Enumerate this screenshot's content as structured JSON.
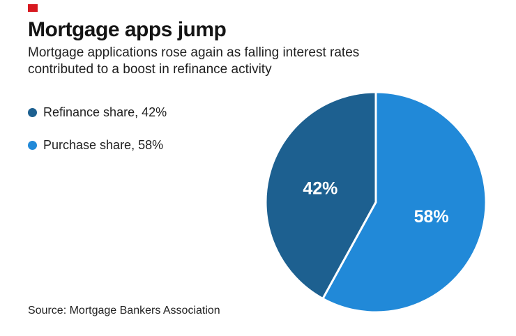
{
  "brand": {
    "mark_color": "#d71920"
  },
  "header": {
    "title": "Mortgage apps jump",
    "subtitle_line1": "Mortgage applications rose again as falling interest rates",
    "subtitle_line2": "contributed to a boost in refinance activity"
  },
  "legend": {
    "items": [
      {
        "label": "Refinance share, 42%",
        "color": "#1d6090"
      },
      {
        "label": "Purchase share, 58%",
        "color": "#2189d8"
      }
    ]
  },
  "chart_data": {
    "type": "pie",
    "title": "Mortgage apps jump",
    "subtitle": "Mortgage applications rose again as falling interest rates contributed to a boost in refinance activity",
    "slices": [
      {
        "label": "Refinance share",
        "value": 42,
        "display": "42%",
        "color": "#1d6090"
      },
      {
        "label": "Purchase share",
        "value": 58,
        "display": "58%",
        "color": "#2189d8"
      }
    ],
    "start_angle_deg": 0,
    "start_position": "12 o'clock",
    "slice_order_from_top_clockwise": [
      "Purchase share",
      "Refinance share"
    ],
    "separator_color": "#ffffff",
    "legend_position": "left",
    "label_style": "white bold percent inside slice"
  },
  "footer": {
    "source": "Source: Mortgage Bankers Association"
  }
}
